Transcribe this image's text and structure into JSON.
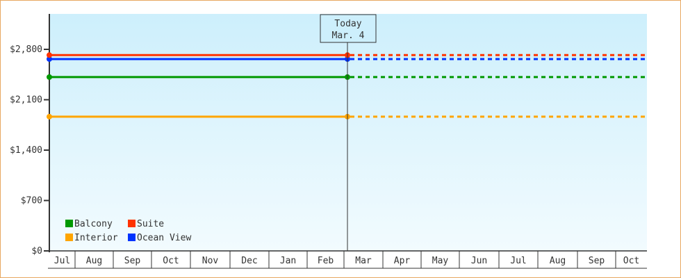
{
  "chart_data": {
    "type": "line",
    "title": "",
    "xlabel": "",
    "ylabel": "",
    "ylim": [
      0,
      3280
    ],
    "yticks": [
      "$0",
      "$700",
      "$1,400",
      "$2,100",
      "$2,800"
    ],
    "ytick_values": [
      0,
      700,
      1400,
      2100,
      2800
    ],
    "months": [
      "Jul",
      "Aug",
      "Sep",
      "Oct",
      "Nov",
      "Dec",
      "Jan",
      "Feb",
      "Mar",
      "Apr",
      "May",
      "Jun",
      "Jul",
      "Aug",
      "Sep",
      "Oct"
    ],
    "today": {
      "label": "Today",
      "date": "Mar. 4"
    },
    "grid": false,
    "legend_placement": "bottom-left",
    "series": [
      {
        "name": "Balcony",
        "color": "#009900",
        "value": 2415
      },
      {
        "name": "Suite",
        "color": "#ff3300",
        "value": 2720
      },
      {
        "name": "Interior",
        "color": "#ffa500",
        "value": 1865
      },
      {
        "name": "Ocean View",
        "color": "#0033ff",
        "value": 2665
      }
    ],
    "note": ""
  }
}
